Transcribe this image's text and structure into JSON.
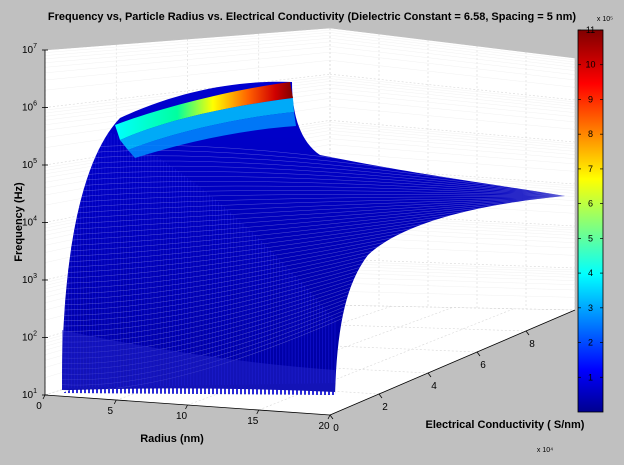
{
  "chart_data": {
    "type": "surface3d",
    "title": "Frequency vs, Particle Radius  vs. Electrical Conductivity  (Dielectric Constant  =  6.58,  Spacing  =  5  nm)",
    "x_axis": {
      "label": "Radius (nm)",
      "range": [
        0,
        20
      ],
      "ticks": [
        "0",
        "5",
        "10",
        "15",
        "20"
      ]
    },
    "y_axis": {
      "label": "Electrical  Conductivity  ( S/nm)",
      "multiplier": "x 10⁴",
      "range": [
        0,
        10
      ],
      "ticks": [
        "0",
        "2",
        "4",
        "6",
        "8"
      ]
    },
    "z_axis": {
      "label": "Frequency (Hz)",
      "scale": "log",
      "range": [
        10,
        10000000
      ],
      "ticks": [
        {
          "base": "10",
          "exp": "1"
        },
        {
          "base": "10",
          "exp": "2"
        },
        {
          "base": "10",
          "exp": "3"
        },
        {
          "base": "10",
          "exp": "4"
        },
        {
          "base": "10",
          "exp": "5"
        },
        {
          "base": "10",
          "exp": "6"
        },
        {
          "base": "10",
          "exp": "7"
        }
      ]
    },
    "colorbar": {
      "multiplier": "x 10⁵",
      "range": [
        0,
        11
      ],
      "ticks": [
        "1",
        "2",
        "3",
        "4",
        "5",
        "6",
        "7",
        "8",
        "9",
        "10",
        "11"
      ],
      "colormap": "jet"
    },
    "grid": true
  }
}
